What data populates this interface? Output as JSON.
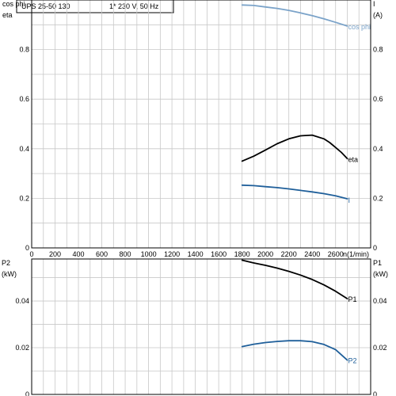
{
  "header": {
    "model": "UPS 25-50 130",
    "supply": "1* 230 V, 50 Hz"
  },
  "chart_data": [
    {
      "type": "line",
      "panel": "top",
      "xlabel": "n(1/min)",
      "x_ticks": [
        0,
        200,
        400,
        600,
        800,
        1000,
        1200,
        1400,
        1600,
        1800,
        2000,
        2200,
        2400,
        2600
      ],
      "xlim": [
        0,
        2900
      ],
      "y_axis_left": {
        "labels": [
          "cos phi",
          "eta"
        ],
        "ticks": [
          0,
          0.2,
          0.4,
          0.6,
          0.8
        ],
        "ylim": [
          0,
          1.0
        ]
      },
      "y_axis_right": {
        "labels": [
          "I",
          "(A)"
        ],
        "ticks": [
          0,
          0.2,
          0.4,
          0.6,
          0.8
        ],
        "ylim": [
          0,
          1.0
        ]
      },
      "grid": true,
      "series": [
        {
          "name": "cos phi",
          "color": "#7ba3c9",
          "x": [
            1800,
            1900,
            2000,
            2100,
            2200,
            2300,
            2400,
            2500,
            2600,
            2700
          ],
          "y": [
            0.98,
            0.978,
            0.972,
            0.966,
            0.958,
            0.948,
            0.937,
            0.924,
            0.91,
            0.895
          ]
        },
        {
          "name": "eta",
          "color": "#000000",
          "x": [
            1800,
            1900,
            2000,
            2100,
            2200,
            2300,
            2400,
            2500,
            2550,
            2600,
            2650,
            2700
          ],
          "y": [
            0.35,
            0.37,
            0.395,
            0.42,
            0.44,
            0.452,
            0.455,
            0.44,
            0.425,
            0.405,
            0.385,
            0.36
          ]
        },
        {
          "name": "I",
          "color": "#1f5f9a",
          "x": [
            1800,
            1900,
            2000,
            2100,
            2200,
            2300,
            2400,
            2500,
            2600,
            2700
          ],
          "y": [
            0.253,
            0.251,
            0.247,
            0.243,
            0.238,
            0.232,
            0.226,
            0.219,
            0.21,
            0.198
          ]
        }
      ]
    },
    {
      "type": "line",
      "panel": "bottom",
      "xlim": [
        0,
        2900
      ],
      "y_axis_left": {
        "labels": [
          "P2",
          "(kW)"
        ],
        "ticks": [
          0,
          0.02,
          0.04
        ],
        "ylim": [
          0,
          0.058
        ]
      },
      "y_axis_right": {
        "labels": [
          "P1",
          "(kW)"
        ],
        "ticks": [
          0,
          0.02,
          0.04
        ],
        "ylim": [
          0,
          0.058
        ]
      },
      "grid": true,
      "series": [
        {
          "name": "P1",
          "color": "#000000",
          "x": [
            1800,
            1900,
            2000,
            2100,
            2200,
            2300,
            2400,
            2500,
            2600,
            2700
          ],
          "y": [
            0.0575,
            0.0563,
            0.0553,
            0.0541,
            0.0527,
            0.0511,
            0.0492,
            0.0469,
            0.0442,
            0.041
          ]
        },
        {
          "name": "P2",
          "color": "#1f5f9a",
          "x": [
            1800,
            1900,
            2000,
            2100,
            2200,
            2300,
            2400,
            2500,
            2600,
            2700
          ],
          "y": [
            0.0205,
            0.0215,
            0.0222,
            0.0227,
            0.023,
            0.023,
            0.0226,
            0.0214,
            0.0192,
            0.0147
          ]
        }
      ]
    }
  ]
}
